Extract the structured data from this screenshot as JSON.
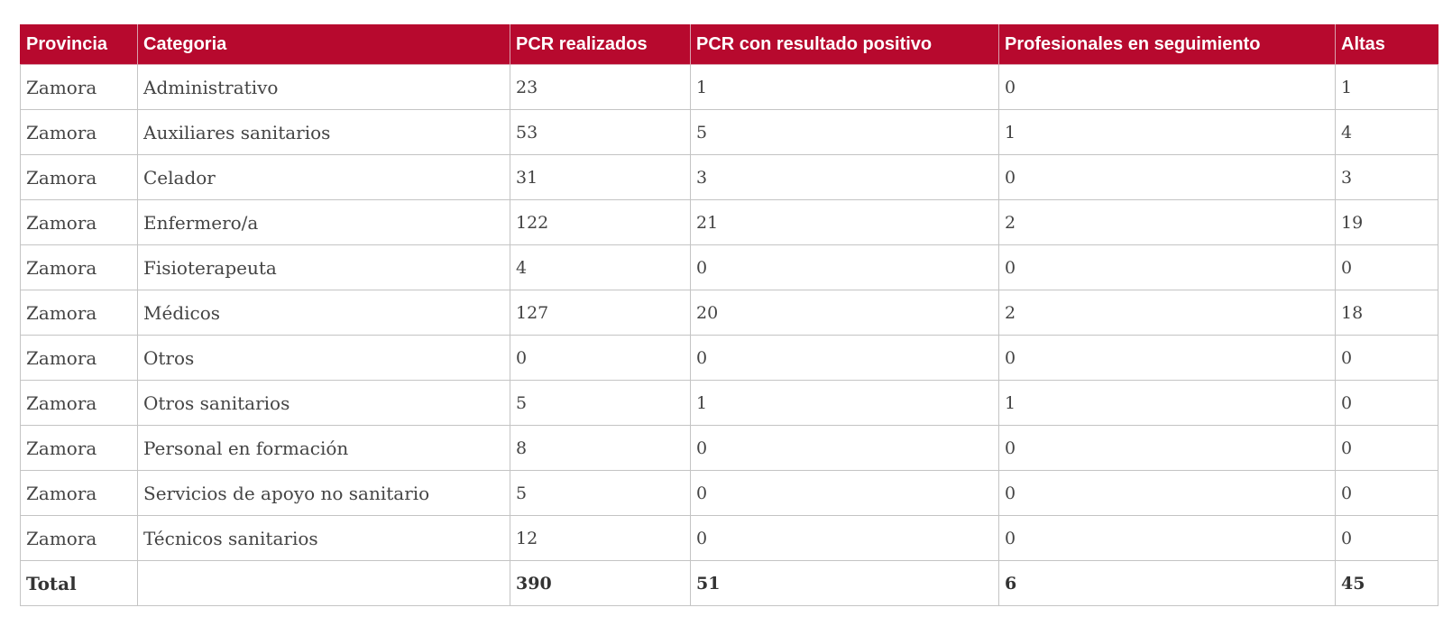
{
  "table": {
    "headers": [
      "Provincia",
      "Categoria",
      "PCR realizados",
      "PCR con resultado positivo",
      "Profesionales en seguimiento",
      "Altas"
    ],
    "rows": [
      [
        "Zamora",
        "Administrativo",
        "23",
        "1",
        "0",
        "1"
      ],
      [
        "Zamora",
        "Auxiliares sanitarios",
        "53",
        "5",
        "1",
        "4"
      ],
      [
        "Zamora",
        "Celador",
        "31",
        "3",
        "0",
        "3"
      ],
      [
        "Zamora",
        "Enfermero/a",
        "122",
        "21",
        "2",
        "19"
      ],
      [
        "Zamora",
        "Fisioterapeuta",
        "4",
        "0",
        "0",
        "0"
      ],
      [
        "Zamora",
        "Médicos",
        "127",
        "20",
        "2",
        "18"
      ],
      [
        "Zamora",
        "Otros",
        "0",
        "0",
        "0",
        "0"
      ],
      [
        "Zamora",
        "Otros sanitarios",
        "5",
        "1",
        "1",
        "0"
      ],
      [
        "Zamora",
        "Personal en formación",
        "8",
        "0",
        "0",
        "0"
      ],
      [
        "Zamora",
        "Servicios de apoyo no sanitario",
        "5",
        "0",
        "0",
        "0"
      ],
      [
        "Zamora",
        "Técnicos sanitarios",
        "12",
        "0",
        "0",
        "0"
      ]
    ],
    "total": [
      "Total",
      "",
      "390",
      "51",
      "6",
      "45"
    ]
  },
  "colors": {
    "header_background": "#b7092e",
    "header_text": "#ffffff",
    "cell_border": "#c4c4c4",
    "body_text": "#444444"
  }
}
